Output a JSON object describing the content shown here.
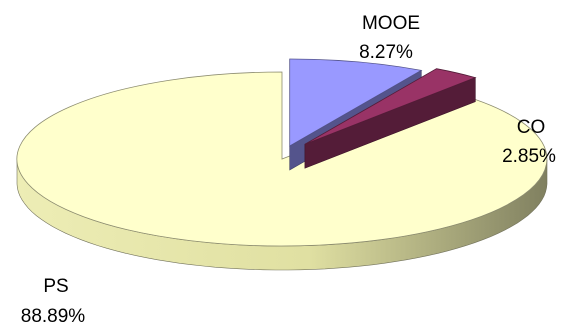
{
  "chart_data": {
    "type": "pie",
    "title": "",
    "categories": [
      "PS",
      "MOOE",
      "CO"
    ],
    "values": [
      88.89,
      8.27,
      2.85
    ],
    "labels": [
      "88.89%",
      "8.27%",
      "2.85%"
    ],
    "colors": [
      "#FFFFCC",
      "#9999FF",
      "#993366"
    ],
    "exploded": [
      "MOOE",
      "CO"
    ],
    "three_d": true,
    "legend": "none"
  }
}
